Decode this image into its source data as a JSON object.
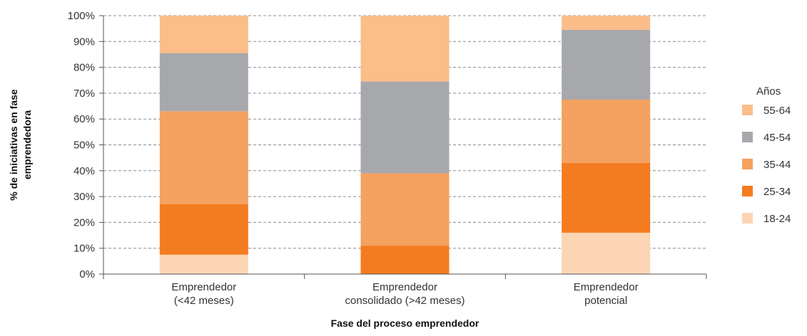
{
  "chart_data": {
    "type": "bar",
    "stacked": true,
    "percent": true,
    "categories": [
      [
        "Emprendedor",
        "(<42 meses)"
      ],
      [
        "Emprendedor",
        "consolidado (>42 meses)"
      ],
      [
        "Emprendedor",
        "potencial"
      ]
    ],
    "series": [
      {
        "name": "18-24",
        "color": "#fcd5b5",
        "values": [
          7.5,
          0,
          16
        ]
      },
      {
        "name": "25-34",
        "color": "#f47c20",
        "values": [
          19.5,
          11,
          27
        ]
      },
      {
        "name": "35-44",
        "color": "#f5a15f",
        "values": [
          36,
          28,
          24.5
        ]
      },
      {
        "name": "45-54",
        "color": "#a7a8ac",
        "values": [
          22.5,
          35.5,
          27
        ]
      },
      {
        "name": "55-64",
        "color": "#fbbd8a",
        "values": [
          14.5,
          25.5,
          5.5
        ]
      }
    ],
    "ylim": [
      0,
      100
    ],
    "yticks": [
      "0%",
      "10%",
      "20%",
      "30%",
      "40%",
      "50%",
      "60%",
      "70%",
      "80%",
      "90%",
      "100%"
    ],
    "xlabel": "Fase del proceso emprendedor",
    "ylabel": [
      "% de iniciativas en fase",
      "emprendedora"
    ],
    "legend_title": "Años",
    "legend_order": [
      "55-64",
      "45-54",
      "35-44",
      "25-34",
      "18-24"
    ],
    "legend_position": "right",
    "grid": "horizontal-dashed",
    "gridline_color": "#8c8c8c",
    "axis_color": "#555555"
  }
}
